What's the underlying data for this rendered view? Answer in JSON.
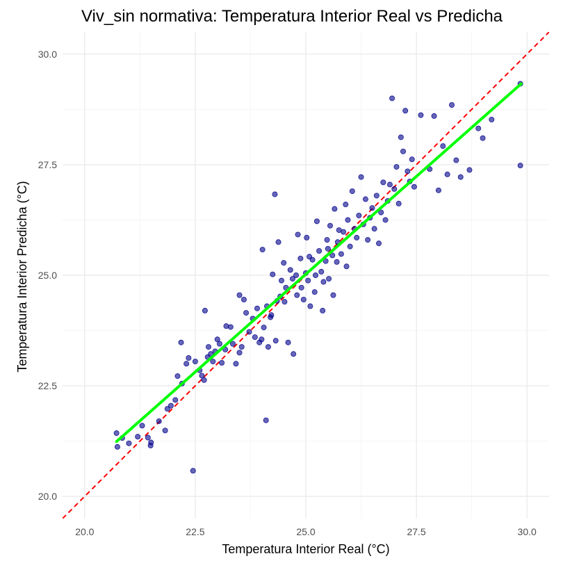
{
  "chart_data": {
    "type": "scatter",
    "title": "Viv_sin normativa: Temperatura Interior Real vs Predicha",
    "xlabel": "Temperatura Interior Real (°C)",
    "ylabel": "Temperatura Interior Predicha (°C)",
    "xlim": [
      19.5,
      30.5
    ],
    "ylim": [
      19.5,
      30.5
    ],
    "x_ticks": [
      20.0,
      22.5,
      25.0,
      27.5,
      30.0
    ],
    "y_ticks": [
      20.0,
      22.5,
      25.0,
      27.5,
      30.0
    ],
    "x_tick_labels": [
      "20.0",
      "22.5",
      "25.0",
      "27.5",
      "30.0"
    ],
    "y_tick_labels": [
      "20.0",
      "22.5",
      "25.0",
      "27.5",
      "30.0"
    ],
    "grid": true,
    "colors": {
      "points": "#00008b",
      "fit_line": "#00ff00",
      "identity_line": "#ff0000",
      "grid_major": "#ebebeb",
      "grid_minor": "#f5f5f5"
    },
    "identity_line": {
      "x": [
        19.5,
        30.5
      ],
      "y": [
        19.5,
        30.5
      ]
    },
    "fit_line": {
      "x": [
        20.72,
        29.87
      ],
      "y": [
        21.24,
        29.33
      ]
    },
    "points": [
      [
        20.72,
        21.43
      ],
      [
        20.74,
        21.12
      ],
      [
        20.85,
        21.32
      ],
      [
        21.0,
        21.2
      ],
      [
        21.2,
        21.35
      ],
      [
        21.3,
        21.6
      ],
      [
        21.43,
        21.33
      ],
      [
        21.49,
        21.15
      ],
      [
        21.5,
        21.22
      ],
      [
        21.68,
        21.7
      ],
      [
        21.82,
        21.49
      ],
      [
        21.87,
        21.98
      ],
      [
        21.95,
        22.05
      ],
      [
        22.05,
        22.18
      ],
      [
        22.1,
        22.72
      ],
      [
        22.18,
        23.48
      ],
      [
        22.2,
        22.55
      ],
      [
        22.3,
        23.0
      ],
      [
        22.35,
        23.13
      ],
      [
        22.45,
        20.58
      ],
      [
        22.5,
        23.05
      ],
      [
        22.6,
        22.85
      ],
      [
        22.65,
        22.73
      ],
      [
        22.7,
        22.63
      ],
      [
        22.72,
        24.2
      ],
      [
        22.78,
        23.15
      ],
      [
        22.8,
        23.38
      ],
      [
        22.85,
        23.22
      ],
      [
        22.9,
        23.05
      ],
      [
        22.95,
        23.28
      ],
      [
        23.0,
        23.55
      ],
      [
        23.05,
        23.45
      ],
      [
        23.1,
        23.02
      ],
      [
        23.18,
        23.32
      ],
      [
        23.2,
        23.85
      ],
      [
        23.3,
        23.83
      ],
      [
        23.35,
        23.45
      ],
      [
        23.42,
        23.0
      ],
      [
        23.5,
        23.25
      ],
      [
        23.5,
        24.55
      ],
      [
        23.55,
        23.38
      ],
      [
        23.6,
        24.45
      ],
      [
        23.65,
        24.15
      ],
      [
        23.72,
        23.72
      ],
      [
        23.8,
        24.02
      ],
      [
        23.85,
        23.6
      ],
      [
        23.9,
        24.25
      ],
      [
        23.95,
        23.48
      ],
      [
        24.0,
        23.55
      ],
      [
        24.02,
        25.58
      ],
      [
        24.05,
        23.82
      ],
      [
        24.1,
        21.72
      ],
      [
        24.12,
        24.3
      ],
      [
        24.15,
        23.38
      ],
      [
        24.2,
        24.05
      ],
      [
        24.22,
        24.1
      ],
      [
        24.25,
        25.02
      ],
      [
        24.3,
        26.83
      ],
      [
        24.32,
        23.52
      ],
      [
        24.35,
        24.42
      ],
      [
        24.38,
        25.75
      ],
      [
        24.42,
        24.52
      ],
      [
        24.45,
        24.88
      ],
      [
        24.5,
        25.28
      ],
      [
        24.52,
        24.4
      ],
      [
        24.55,
        24.72
      ],
      [
        24.6,
        23.48
      ],
      [
        24.65,
        25.12
      ],
      [
        24.7,
        24.92
      ],
      [
        24.72,
        23.22
      ],
      [
        24.78,
        25.0
      ],
      [
        24.8,
        24.55
      ],
      [
        24.82,
        25.92
      ],
      [
        24.88,
        25.38
      ],
      [
        24.9,
        24.72
      ],
      [
        24.95,
        24.45
      ],
      [
        25.0,
        25.05
      ],
      [
        25.02,
        25.85
      ],
      [
        25.05,
        24.88
      ],
      [
        25.08,
        25.42
      ],
      [
        25.1,
        24.3
      ],
      [
        25.15,
        25.35
      ],
      [
        25.2,
        24.62
      ],
      [
        25.22,
        25.0
      ],
      [
        25.25,
        26.22
      ],
      [
        25.3,
        25.55
      ],
      [
        25.35,
        25.08
      ],
      [
        25.38,
        24.2
      ],
      [
        25.4,
        24.85
      ],
      [
        25.45,
        25.32
      ],
      [
        25.48,
        25.8
      ],
      [
        25.5,
        25.6
      ],
      [
        25.52,
        24.92
      ],
      [
        25.55,
        26.12
      ],
      [
        25.6,
        25.45
      ],
      [
        25.62,
        24.55
      ],
      [
        25.65,
        26.5
      ],
      [
        25.7,
        25.3
      ],
      [
        25.72,
        25.75
      ],
      [
        25.75,
        26.02
      ],
      [
        25.8,
        25.48
      ],
      [
        25.85,
        25.98
      ],
      [
        25.9,
        26.6
      ],
      [
        25.92,
        25.2
      ],
      [
        25.95,
        26.25
      ],
      [
        26.0,
        25.65
      ],
      [
        26.05,
        26.9
      ],
      [
        26.1,
        26.05
      ],
      [
        26.15,
        25.85
      ],
      [
        26.2,
        26.35
      ],
      [
        26.25,
        27.22
      ],
      [
        26.3,
        26.15
      ],
      [
        26.35,
        26.72
      ],
      [
        26.4,
        25.8
      ],
      [
        26.45,
        26.3
      ],
      [
        26.5,
        26.52
      ],
      [
        26.55,
        26.05
      ],
      [
        26.6,
        26.8
      ],
      [
        26.65,
        25.72
      ],
      [
        26.7,
        26.42
      ],
      [
        26.75,
        27.1
      ],
      [
        26.8,
        26.25
      ],
      [
        26.85,
        26.68
      ],
      [
        26.9,
        27.05
      ],
      [
        26.95,
        29.0
      ],
      [
        27.0,
        26.95
      ],
      [
        27.05,
        27.45
      ],
      [
        27.1,
        26.62
      ],
      [
        27.15,
        28.12
      ],
      [
        27.2,
        27.8
      ],
      [
        27.25,
        28.72
      ],
      [
        27.3,
        27.35
      ],
      [
        27.35,
        27.12
      ],
      [
        27.4,
        27.62
      ],
      [
        27.45,
        27.0
      ],
      [
        27.6,
        28.62
      ],
      [
        27.8,
        27.4
      ],
      [
        27.9,
        28.6
      ],
      [
        28.0,
        26.92
      ],
      [
        28.1,
        27.92
      ],
      [
        28.2,
        27.28
      ],
      [
        28.3,
        28.85
      ],
      [
        28.4,
        27.6
      ],
      [
        28.5,
        27.22
      ],
      [
        28.7,
        27.38
      ],
      [
        28.9,
        28.32
      ],
      [
        29.0,
        28.1
      ],
      [
        29.2,
        28.52
      ],
      [
        29.85,
        29.33
      ],
      [
        29.85,
        27.48
      ]
    ]
  }
}
